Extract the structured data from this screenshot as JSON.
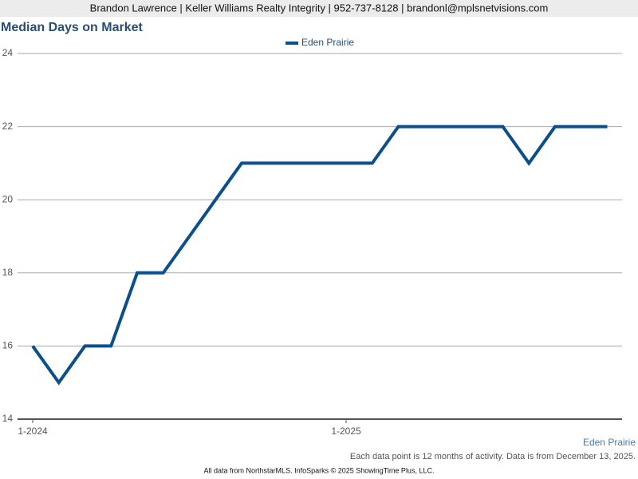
{
  "header": "Brandon Lawrence | Keller Williams Realty Integrity | 952-737-8128 | brandonl@mplsnetvisions.com",
  "chart_data": {
    "type": "line",
    "title": "Median Days on Market",
    "categories": [
      "1-2024",
      null,
      null,
      null,
      null,
      null,
      null,
      null,
      null,
      null,
      null,
      null,
      "1-2025",
      null,
      null,
      null,
      null,
      null,
      null,
      null,
      null,
      null,
      null
    ],
    "series": [
      {
        "name": "Eden Prairie",
        "color": "#0b4f8c",
        "values": [
          16,
          15,
          16,
          16,
          18,
          18,
          19,
          20,
          21,
          21,
          21,
          21,
          21,
          21,
          22,
          22,
          22,
          22,
          22,
          21,
          22,
          22,
          22
        ]
      }
    ],
    "ylim": [
      14,
      24
    ],
    "yticks": [
      14,
      16,
      18,
      20,
      22,
      24
    ],
    "grid": true,
    "legend": "top",
    "caption": "Eden Prairie"
  },
  "note": "Each data point is 12 months of activity. Data is from December 13, 2025.",
  "source": "All data from NorthstarMLS. InfoSparks © 2025 ShowingTime Plus, LLC."
}
